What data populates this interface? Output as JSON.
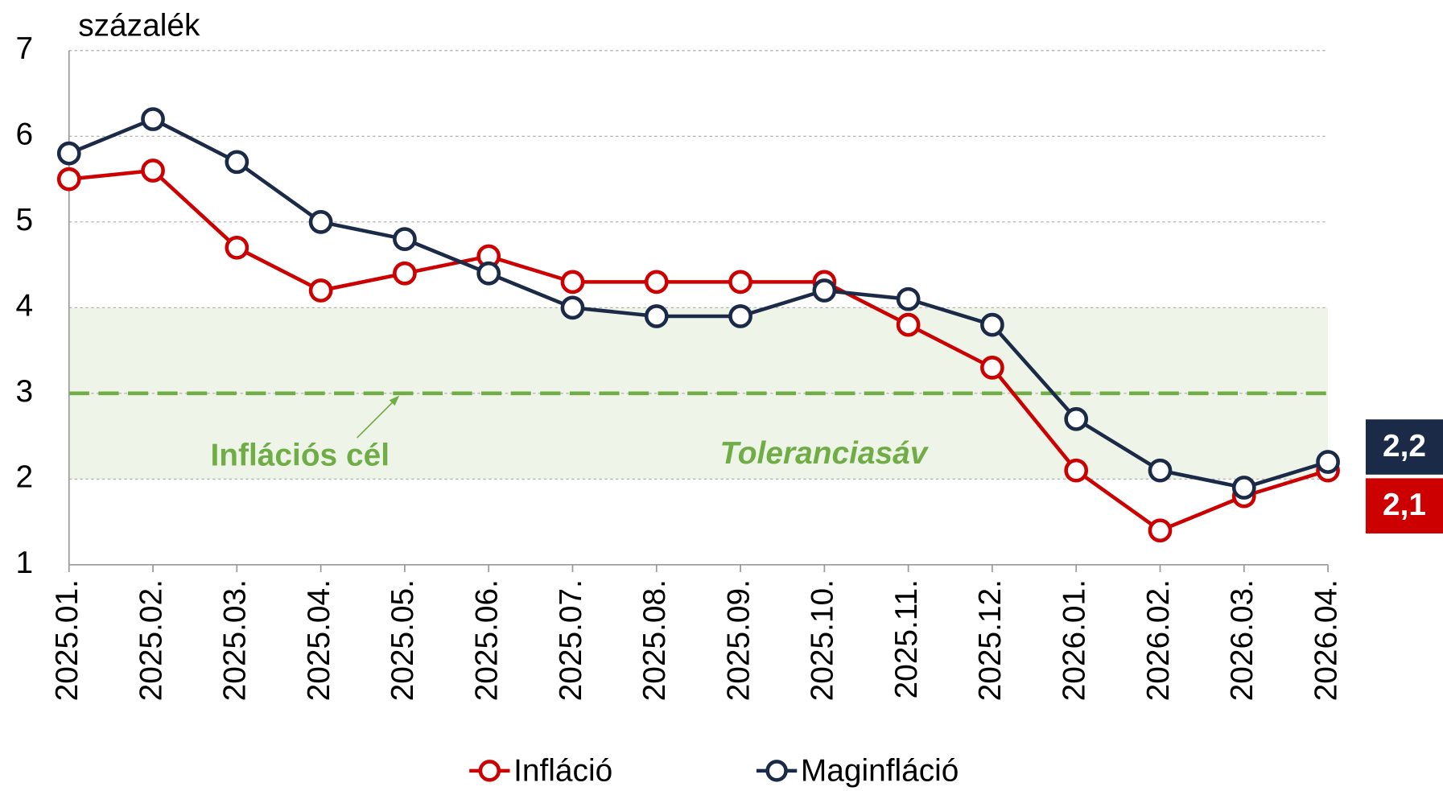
{
  "chart_data": {
    "type": "line",
    "y_label": "százalék",
    "categories": [
      "2025.01.",
      "2025.02.",
      "2025.03.",
      "2025.04.",
      "2025.05.",
      "2025.06.",
      "2025.07.",
      "2025.08.",
      "2025.09.",
      "2025.10.",
      "2025.11.",
      "2025.12.",
      "2026.01.",
      "2026.02.",
      "2026.03.",
      "2026.04."
    ],
    "series": [
      {
        "name": "Infláció",
        "color": "#cc0000",
        "values": [
          5.5,
          5.6,
          4.7,
          4.2,
          4.4,
          4.6,
          4.3,
          4.3,
          4.3,
          4.3,
          3.8,
          3.3,
          2.1,
          1.4,
          1.8,
          2.1
        ],
        "end_label": "2,1"
      },
      {
        "name": "Maginfláció",
        "color": "#1b2a47",
        "values": [
          5.8,
          6.2,
          5.7,
          5.0,
          4.8,
          4.4,
          4.0,
          3.9,
          3.9,
          4.2,
          4.1,
          3.8,
          2.7,
          2.1,
          1.9,
          2.2
        ],
        "end_label": "2,2"
      }
    ],
    "tolerance_band": [
      2,
      4
    ],
    "band_color": "#eef5e8",
    "band_label": "Toleranciasáv",
    "target": 3,
    "target_color": "#70ad47",
    "target_label": "Inflációs cél",
    "ylim": [
      1,
      7
    ],
    "yticks": [
      1,
      2,
      3,
      4,
      5,
      6,
      7
    ],
    "grid": true,
    "legend": "bottom"
  }
}
